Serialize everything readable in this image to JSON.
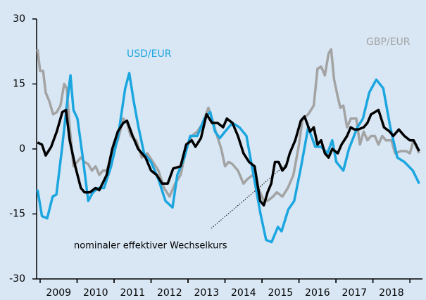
{
  "chart_data": {
    "type": "line",
    "ylim": [
      -30,
      30
    ],
    "yticks": [
      30,
      15,
      0,
      -15,
      -30
    ],
    "xlim": [
      2008.905,
      2019.34
    ],
    "xticks": [
      {
        "value": 2009.5,
        "label": "2009"
      },
      {
        "value": 2010.5,
        "label": "2010"
      },
      {
        "value": 2011.5,
        "label": "2011"
      },
      {
        "value": 2012.5,
        "label": "2012"
      },
      {
        "value": 2013.5,
        "label": "2013"
      },
      {
        "value": 2014.5,
        "label": "2014"
      },
      {
        "value": 2015.5,
        "label": "2015"
      },
      {
        "value": 2016.5,
        "label": "2016"
      },
      {
        "value": 2017.5,
        "label": "2017"
      },
      {
        "value": 2018.5,
        "label": "2018"
      }
    ],
    "grid": false,
    "series": [
      {
        "name": "GBP/EUR",
        "color": "#a3a3a3",
        "x": [
          2008.93,
          2009.0,
          2009.08,
          2009.15,
          2009.25,
          2009.35,
          2009.45,
          2009.55,
          2009.65,
          2009.72,
          2009.8,
          2009.9,
          2010.0,
          2010.1,
          2010.2,
          2010.3,
          2010.4,
          2010.5,
          2010.6,
          2010.7,
          2010.8,
          2010.95,
          2011.1,
          2011.25,
          2011.35,
          2011.45,
          2011.6,
          2011.75,
          2011.9,
          2012.05,
          2012.2,
          2012.35,
          2012.5,
          2012.65,
          2012.8,
          2012.95,
          2013.1,
          2013.25,
          2013.4,
          2013.55,
          2013.65,
          2013.75,
          2013.9,
          2014.0,
          2014.1,
          2014.2,
          2014.35,
          2014.5,
          2014.6,
          2014.75,
          2014.85,
          2014.95,
          2015.05,
          2015.15,
          2015.3,
          2015.4,
          2015.55,
          2015.7,
          2015.85,
          2016.0,
          2016.1,
          2016.25,
          2016.4,
          2016.5,
          2016.6,
          2016.7,
          2016.8,
          2016.87,
          2016.95,
          2017.05,
          2017.12,
          2017.2,
          2017.3,
          2017.4,
          2017.55,
          2017.65,
          2017.75,
          2017.85,
          2017.95,
          2018.05,
          2018.15,
          2018.25,
          2018.35,
          2018.5,
          2018.6,
          2018.75,
          2018.9,
          2019.0,
          2019.1,
          2019.25
        ],
        "values": [
          23,
          18,
          18,
          13,
          11,
          8,
          8.5,
          10,
          15,
          14,
          5,
          -4,
          -3,
          -2,
          -3,
          -3.5,
          -5,
          -4,
          -6,
          -5,
          -5,
          -1,
          2,
          7,
          6,
          3,
          2,
          -2,
          -1,
          -3,
          -5,
          -9,
          -11,
          -8,
          -6,
          0,
          3,
          4,
          6,
          9.5,
          7,
          4,
          0,
          -4,
          -3,
          -3.5,
          -5,
          -8,
          -7,
          -6,
          -8,
          -10,
          -12,
          -12,
          -11,
          -10,
          -11,
          -9,
          -6,
          1,
          7,
          8,
          10,
          18.5,
          19,
          17,
          22,
          23,
          16,
          12,
          9.5,
          10,
          5,
          7,
          7,
          1,
          4,
          2,
          3,
          3,
          1,
          3,
          2,
          2,
          -1,
          -0.5,
          -0.5,
          -1,
          2,
          -1
        ]
      },
      {
        "name": "USD/EUR",
        "color": "#1ca6df",
        "x": [
          2008.93,
          2009.05,
          2009.19,
          2009.34,
          2009.44,
          2009.59,
          2009.72,
          2009.82,
          2009.9,
          2010.01,
          2010.17,
          2010.3,
          2010.43,
          2010.58,
          2010.73,
          2010.92,
          2011.11,
          2011.3,
          2011.41,
          2011.53,
          2011.66,
          2011.81,
          2012.0,
          2012.2,
          2012.39,
          2012.58,
          2012.71,
          2012.9,
          2013.06,
          2013.25,
          2013.44,
          2013.6,
          2013.73,
          2013.86,
          2014.0,
          2014.2,
          2014.39,
          2014.58,
          2014.77,
          2014.96,
          2015.11,
          2015.26,
          2015.43,
          2015.53,
          2015.71,
          2015.87,
          2016.06,
          2016.25,
          2016.44,
          2016.6,
          2016.77,
          2016.9,
          2017.01,
          2017.2,
          2017.35,
          2017.58,
          2017.73,
          2017.9,
          2018.09,
          2018.28,
          2018.47,
          2018.66,
          2018.85,
          2019.08,
          2019.25
        ],
        "values": [
          -9.4,
          -15.5,
          -16,
          -11,
          -10.5,
          0,
          10,
          17,
          9,
          7,
          -3,
          -12,
          -10,
          -9,
          -9,
          -4,
          3,
          14,
          17.5,
          11,
          5,
          -1,
          -3,
          -7,
          -12,
          -13.5,
          -6,
          -2,
          3,
          3,
          7,
          8.5,
          4,
          2.5,
          4,
          6,
          5,
          3,
          -6,
          -15,
          -21,
          -21.5,
          -18,
          -19,
          -14,
          -12,
          -4,
          5,
          0.5,
          0.5,
          -1,
          2,
          -3,
          -5,
          0,
          5,
          7,
          13,
          16,
          14,
          5,
          -2,
          -3,
          -5,
          -8
        ]
      },
      {
        "name": "nominaler effektiver Wechselkurs",
        "color": "#000000",
        "x": [
          2008.93,
          2009.05,
          2009.15,
          2009.3,
          2009.45,
          2009.6,
          2009.7,
          2009.8,
          2009.95,
          2010.1,
          2010.2,
          2010.35,
          2010.5,
          2010.6,
          2010.8,
          2010.95,
          2011.1,
          2011.25,
          2011.35,
          2011.5,
          2011.65,
          2011.85,
          2012.0,
          2012.15,
          2012.3,
          2012.45,
          2012.6,
          2012.8,
          2012.95,
          2013.1,
          2013.2,
          2013.35,
          2013.5,
          2013.65,
          2013.8,
          2013.95,
          2014.05,
          2014.2,
          2014.35,
          2014.5,
          2014.65,
          2014.8,
          2014.95,
          2015.05,
          2015.15,
          2015.25,
          2015.35,
          2015.45,
          2015.55,
          2015.65,
          2015.75,
          2015.9,
          2016.05,
          2016.15,
          2016.3,
          2016.4,
          2016.5,
          2016.6,
          2016.7,
          2016.8,
          2016.9,
          2017.05,
          2017.15,
          2017.3,
          2017.4,
          2017.5,
          2017.6,
          2017.75,
          2017.85,
          2017.95,
          2018.05,
          2018.15,
          2018.3,
          2018.45,
          2018.55,
          2018.7,
          2018.85,
          2019.0,
          2019.1,
          2019.25
        ],
        "values": [
          1.5,
          1,
          -1.5,
          0.5,
          4,
          8.5,
          9,
          2,
          -4,
          -9,
          -10,
          -10,
          -9,
          -9.5,
          -6,
          0,
          4,
          6,
          6.5,
          3,
          0,
          -2,
          -5,
          -6,
          -8,
          -8,
          -4.5,
          -4,
          1,
          2,
          0.5,
          2.5,
          8,
          6,
          6,
          5,
          7,
          6,
          3,
          -1,
          -3,
          -4,
          -12,
          -13,
          -10,
          -8,
          -3,
          -3,
          -5,
          -4,
          -1,
          2,
          6.5,
          7.5,
          4,
          5,
          1,
          2,
          -1,
          -2,
          0,
          -1,
          1,
          3,
          5,
          4.5,
          4.5,
          5,
          6,
          8,
          8.5,
          9,
          5,
          4,
          3,
          4.5,
          3,
          2,
          2,
          -0.5
        ]
      }
    ]
  }
}
